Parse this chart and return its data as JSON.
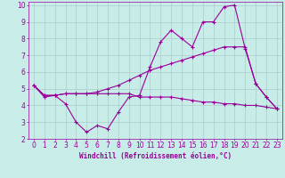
{
  "bg_color": "#c8ece8",
  "grid_color": "#aacccc",
  "line_color": "#990099",
  "xlabel": "Windchill (Refroidissement éolien,°C)",
  "xlim": [
    -0.5,
    23.5
  ],
  "ylim": [
    2,
    10.2
  ],
  "xticks": [
    0,
    1,
    2,
    3,
    4,
    5,
    6,
    7,
    8,
    9,
    10,
    11,
    12,
    13,
    14,
    15,
    16,
    17,
    18,
    19,
    20,
    21,
    22,
    23
  ],
  "yticks": [
    2,
    3,
    4,
    5,
    6,
    7,
    8,
    9,
    10
  ],
  "line1_x": [
    0,
    1,
    2,
    3,
    4,
    5,
    6,
    7,
    8,
    9,
    10,
    11,
    12,
    13,
    14,
    15,
    16,
    17,
    18,
    19,
    20,
    21,
    22,
    23
  ],
  "line1_y": [
    5.2,
    4.5,
    4.6,
    4.1,
    3.0,
    2.4,
    2.8,
    2.6,
    3.6,
    4.5,
    4.6,
    6.3,
    7.8,
    8.5,
    8.0,
    7.5,
    9.0,
    9.0,
    9.9,
    10.0,
    7.4,
    5.3,
    4.5,
    3.8
  ],
  "line2_x": [
    0,
    1,
    2,
    3,
    4,
    5,
    6,
    7,
    8,
    9,
    10,
    11,
    12,
    13,
    14,
    15,
    16,
    17,
    18,
    19,
    20,
    21,
    22,
    23
  ],
  "line2_y": [
    5.2,
    4.6,
    4.6,
    4.7,
    4.7,
    4.7,
    4.7,
    4.7,
    4.7,
    4.7,
    4.5,
    4.5,
    4.5,
    4.5,
    4.4,
    4.3,
    4.2,
    4.2,
    4.1,
    4.1,
    4.0,
    4.0,
    3.9,
    3.8
  ],
  "line3_x": [
    0,
    1,
    2,
    3,
    4,
    5,
    6,
    7,
    8,
    9,
    10,
    11,
    12,
    13,
    14,
    15,
    16,
    17,
    18,
    19,
    20,
    21,
    22,
    23
  ],
  "line3_y": [
    5.2,
    4.6,
    4.6,
    4.7,
    4.7,
    4.7,
    4.8,
    5.0,
    5.2,
    5.5,
    5.8,
    6.1,
    6.3,
    6.5,
    6.7,
    6.9,
    7.1,
    7.3,
    7.5,
    7.5,
    7.5,
    5.3,
    4.5,
    3.8
  ],
  "tick_labelsize": 5.5,
  "xlabel_fontsize": 5.5,
  "line_width": 0.8,
  "marker_size": 2.5
}
